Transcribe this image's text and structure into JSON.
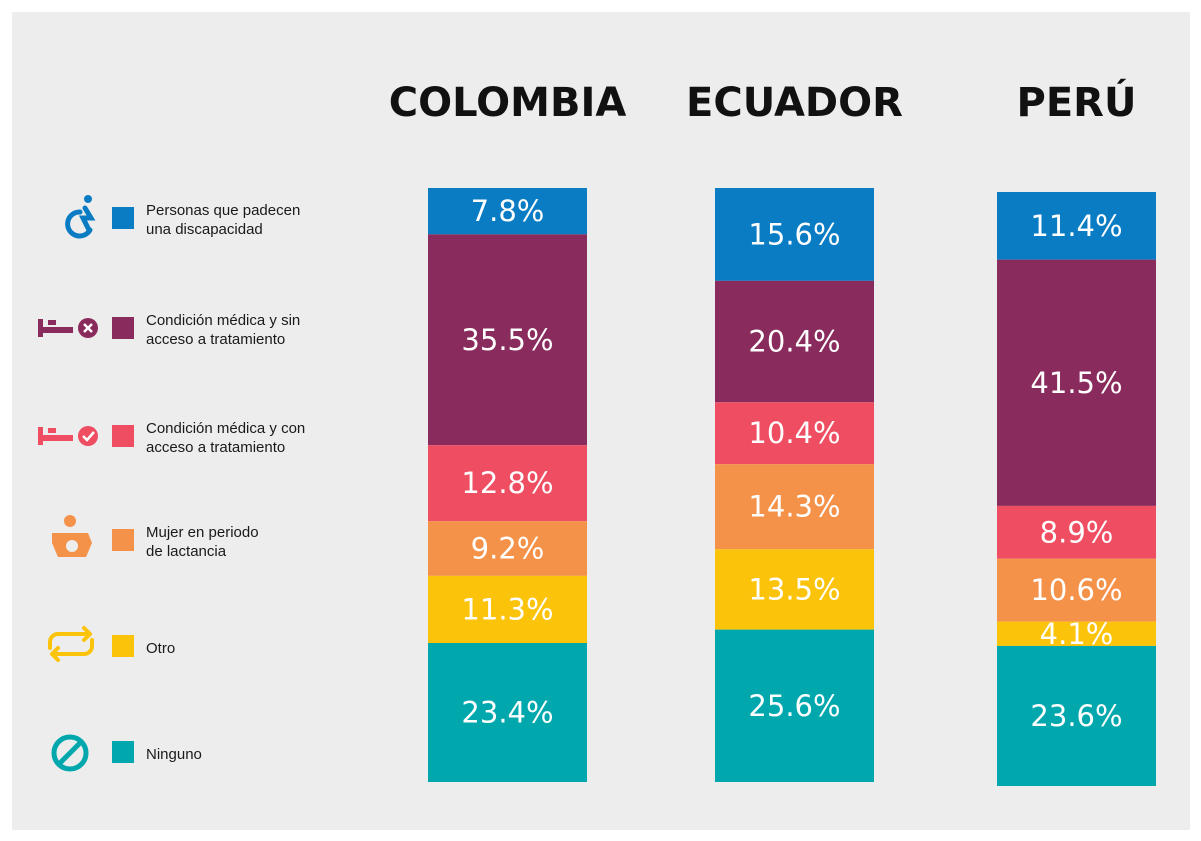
{
  "chart_data": {
    "type": "bar",
    "stacked": true,
    "categories": [
      "COLOMBIA",
      "ECUADOR",
      "PERÚ"
    ],
    "series": [
      {
        "name": "Personas que padecen una discapacidad",
        "color": "#0a7cc4",
        "values": [
          7.8,
          15.6,
          11.4
        ],
        "value_labels": [
          "7.8%",
          "15.6%",
          "11.4%"
        ]
      },
      {
        "name": "Condición médica y sin acceso a tratamiento",
        "color": "#892b5c",
        "values": [
          35.5,
          20.4,
          41.5
        ],
        "value_labels": [
          "35.5%",
          "20.4%",
          "41.5%"
        ]
      },
      {
        "name": "Condición médica y con acceso a tratamiento",
        "color": "#ef4d61",
        "values": [
          12.8,
          10.4,
          8.9
        ],
        "value_labels": [
          "12.8%",
          "10.4%",
          "8.9%"
        ]
      },
      {
        "name": "Mujer en periodo de lactancia",
        "color": "#f5924a",
        "values": [
          9.2,
          14.3,
          10.6
        ],
        "value_labels": [
          "9.2%",
          "14.3%",
          "10.6%"
        ]
      },
      {
        "name": "Otro",
        "color": "#fcc30b",
        "values": [
          11.3,
          13.5,
          4.1
        ],
        "value_labels": [
          "11.3%",
          "13.5%",
          "4.1%"
        ]
      },
      {
        "name": "Ninguno",
        "color": "#00a8ad",
        "values": [
          23.4,
          25.6,
          23.6
        ],
        "value_labels": [
          "23.4%",
          "25.6%",
          "23.6%"
        ]
      }
    ]
  }
}
